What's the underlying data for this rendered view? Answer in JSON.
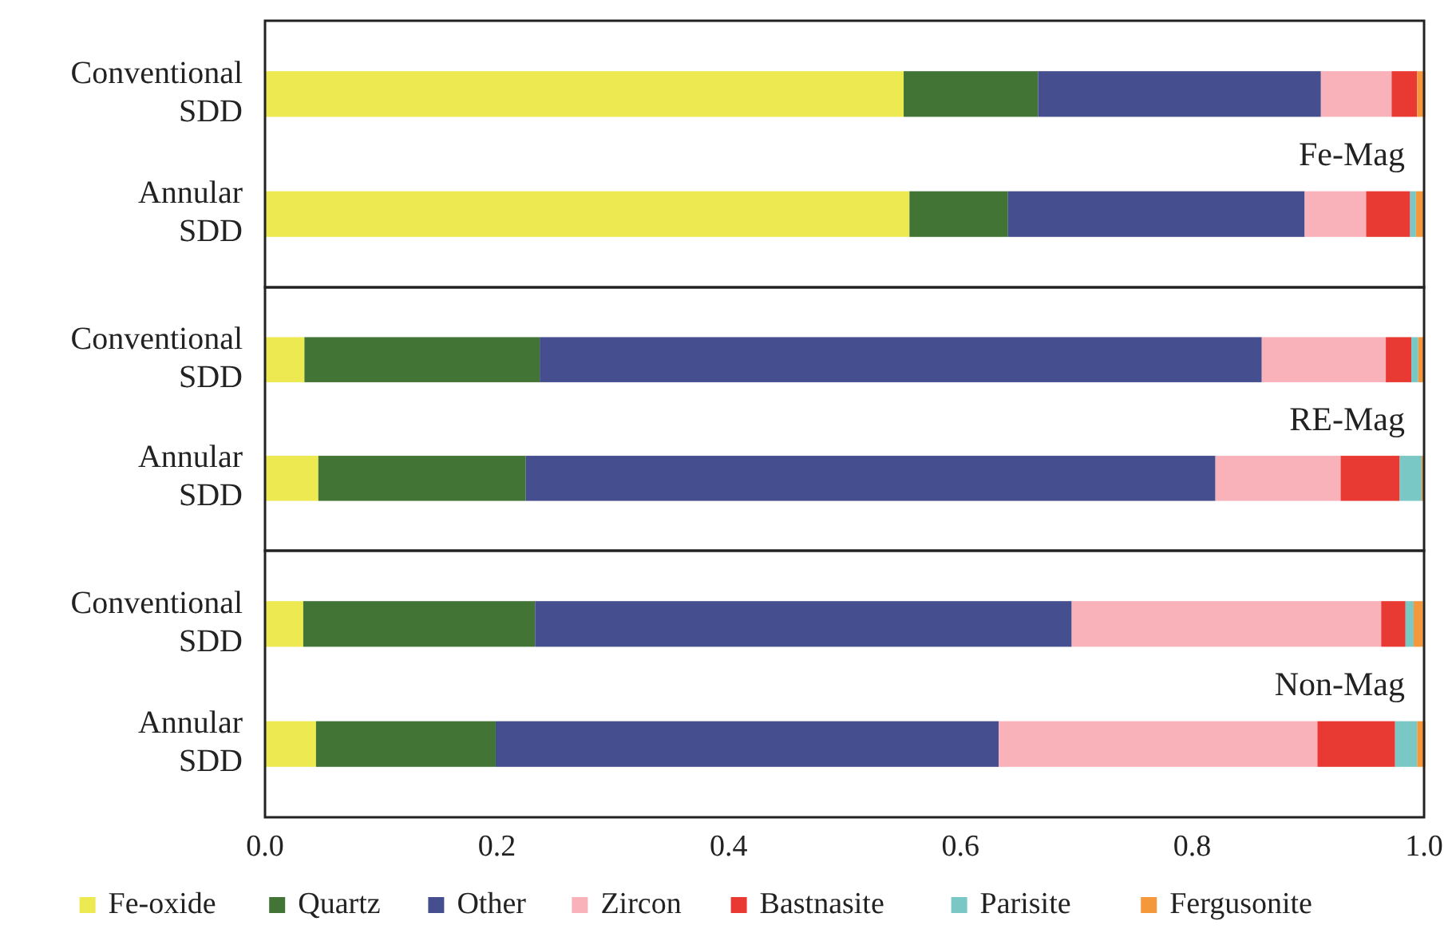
{
  "chart_data": [
    {
      "type": "bar",
      "orientation": "horizontal",
      "stacked": true,
      "categories": [
        "Conventional SDD",
        "Annular SDD"
      ],
      "xlim": [
        0,
        1
      ],
      "xticks": [
        0,
        0.2,
        0.4,
        0.6,
        0.8,
        1
      ],
      "tick_labels": "y",
      "grid": false,
      "legend": false,
      "annotations": [
        "Fe-Mag"
      ],
      "series": [
        {
          "color": "#ede951",
          "values": [
            0.551,
            0.556
          ]
        },
        {
          "color": "#427535",
          "values": [
            0.116,
            0.085
          ]
        },
        {
          "color": "#454e8e",
          "values": [
            0.244,
            0.256
          ]
        },
        {
          "color": "#f9b1ba",
          "values": [
            0.061,
            0.053
          ]
        },
        {
          "color": "#e83a33",
          "values": [
            0.022,
            0.038
          ]
        },
        {
          "color": "#79c8c6",
          "values": [
            0,
            0.005
          ]
        },
        {
          "color": "#f5983c",
          "values": [
            0.007,
            0.007
          ]
        }
      ]
    },
    {
      "type": "bar",
      "orientation": "horizontal",
      "stacked": true,
      "categories": [
        "Conventional SDD",
        "Annular SDD"
      ],
      "xlim": [
        0,
        1
      ],
      "xticks": [
        0,
        0.2,
        0.4,
        0.6,
        0.8,
        1
      ],
      "tick_labels": "y",
      "grid": false,
      "legend": false,
      "annotations": [
        "RE-Mag"
      ],
      "series": [
        {
          "color": "#ede951",
          "values": [
            0.034,
            0.046
          ]
        },
        {
          "color": "#427535",
          "values": [
            0.203,
            0.179
          ]
        },
        {
          "color": "#454e8e",
          "values": [
            0.623,
            0.595
          ]
        },
        {
          "color": "#f9b1ba",
          "values": [
            0.107,
            0.108
          ]
        },
        {
          "color": "#e83a33",
          "values": [
            0.022,
            0.051
          ]
        },
        {
          "color": "#79c8c6",
          "values": [
            0.006,
            0.019
          ]
        },
        {
          "color": "#f5983c",
          "values": [
            0.005,
            0.002
          ]
        }
      ]
    },
    {
      "type": "bar",
      "orientation": "horizontal",
      "stacked": true,
      "categories": [
        "Conventional SDD",
        "Annular SDD"
      ],
      "xlim": [
        0,
        1
      ],
      "xticks": [
        "0.0",
        0.2,
        0.4,
        0.6,
        0.8,
        "1.0"
      ],
      "grid": false,
      "legend": "bottom",
      "annotations": [
        "Non-Mag"
      ],
      "series": [
        {
          "name": "Fe-oxide",
          "color": "#ede951",
          "values": [
            0.033,
            0.044
          ]
        },
        {
          "name": "Quartz",
          "color": "#427535",
          "values": [
            0.2,
            0.155
          ]
        },
        {
          "name": "Other",
          "color": "#454e8e",
          "values": [
            0.463,
            0.434
          ]
        },
        {
          "name": "Zircon",
          "color": "#f9b1ba",
          "values": [
            0.267,
            0.275
          ]
        },
        {
          "name": "Bastnasite",
          "color": "#e83a33",
          "values": [
            0.021,
            0.067
          ]
        },
        {
          "name": "Parisite",
          "color": "#79c8c6",
          "values": [
            0.007,
            0.019
          ]
        },
        {
          "name": "Fergusonite",
          "color": "#f5983c",
          "values": [
            0.008,
            0.007
          ]
        }
      ]
    }
  ]
}
